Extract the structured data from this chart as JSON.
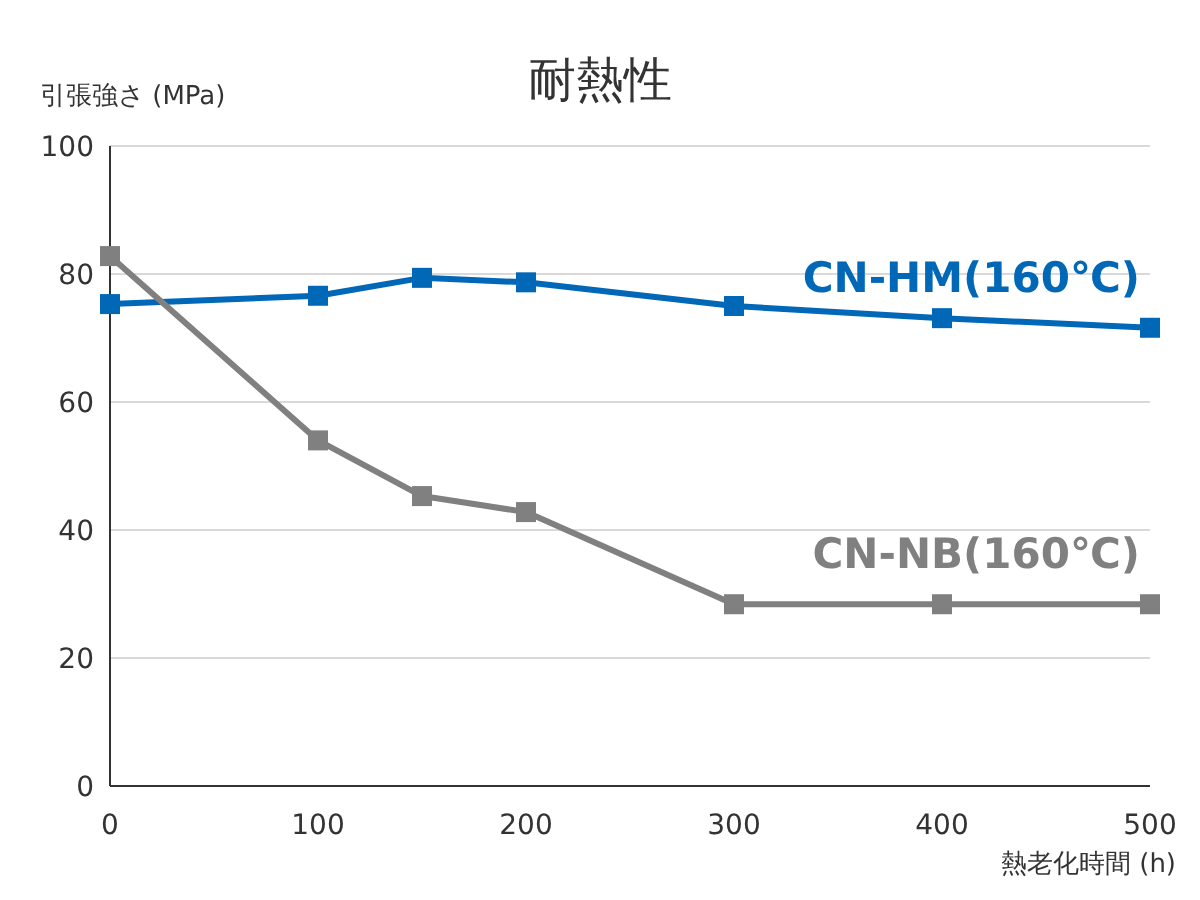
{
  "chart_data": {
    "type": "line",
    "title": "耐熱性",
    "xlabel": "熱老化時間 (h)",
    "ylabel": "引張強さ (MPa)",
    "x": [
      0,
      100,
      150,
      200,
      300,
      400,
      500
    ],
    "series": [
      {
        "name": "CN-HM(160℃)",
        "color": "#0068b7",
        "values": [
          75.3,
          76.6,
          79.4,
          78.7,
          75,
          73.1,
          71.6
        ]
      },
      {
        "name": "CN-NB(160℃)",
        "color": "#808080",
        "values": [
          82.8,
          54,
          45.3,
          42.8,
          28.4,
          28.4,
          28.4
        ]
      }
    ],
    "xlim": [
      0,
      500
    ],
    "xticks": [
      0,
      100,
      200,
      300,
      400,
      500
    ],
    "ylim": [
      0,
      100
    ],
    "yticks": [
      0,
      20,
      40,
      60,
      80,
      100
    ],
    "grid": "y",
    "marker": "square",
    "line_style": "solid"
  }
}
